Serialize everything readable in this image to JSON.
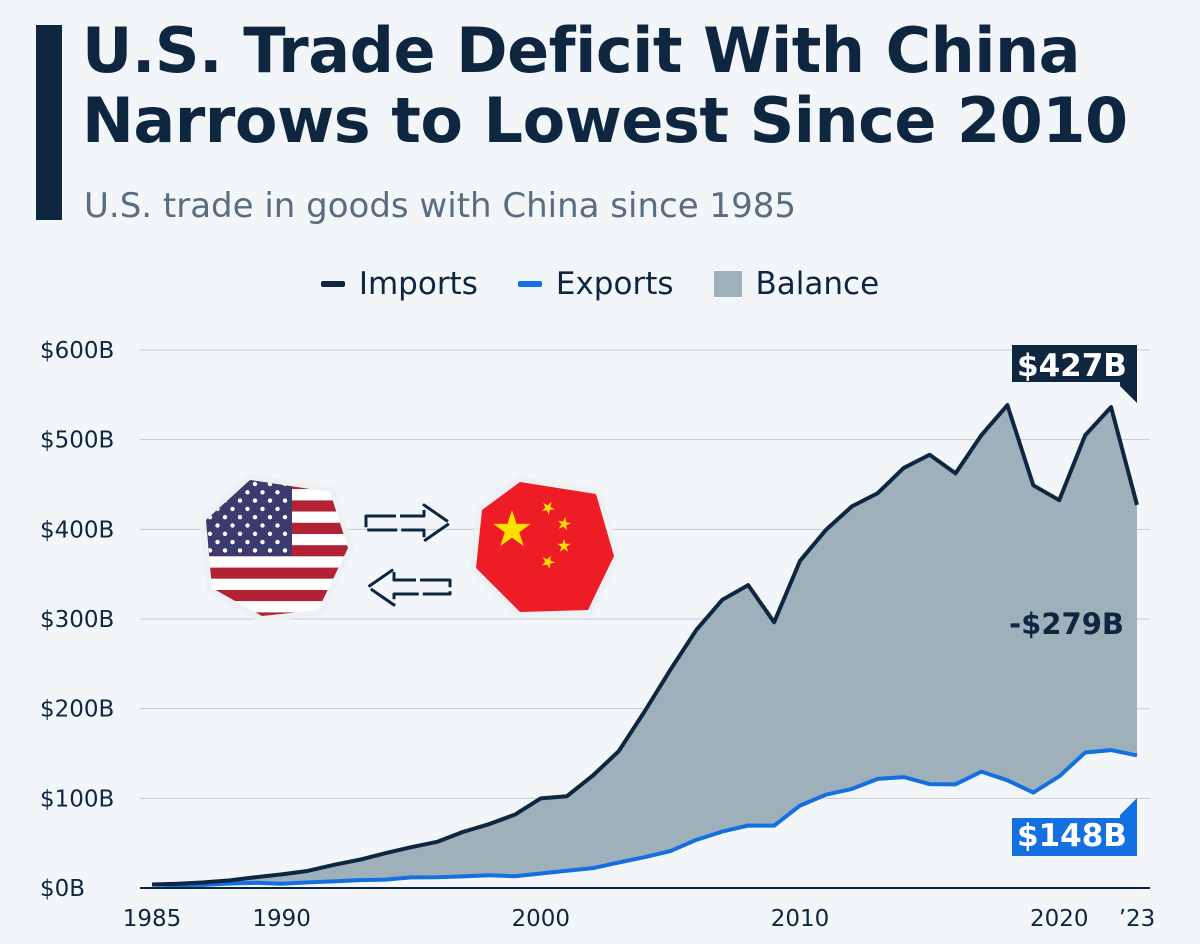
{
  "header": {
    "title_line1": "U.S. Trade Deficit With China",
    "title_line2": "Narrows to Lowest Since 2010",
    "subtitle": "U.S. trade in goods with China since 1985"
  },
  "colors": {
    "imports": "#0f2640",
    "exports": "#1470e0",
    "balance": "#9eb0ba",
    "background": "#f3f6f9"
  },
  "icons": {
    "left": "us-flag-icon",
    "middle": "exchange-arrows-icon",
    "right": "china-flag-icon"
  },
  "chart_data": {
    "type": "area",
    "title": "U.S. Trade Deficit With China Narrows to Lowest Since 2010",
    "subtitle": "U.S. trade in goods with China since 1985",
    "legend": [
      "Imports",
      "Exports",
      "Balance"
    ],
    "legend_position": "top",
    "grid": true,
    "ylim": [
      0,
      600
    ],
    "yticks": [
      "$0B",
      "$100B",
      "$200B",
      "$300B",
      "$400B",
      "$500B",
      "$600B"
    ],
    "xticks": [
      "1985",
      "1990",
      "2000",
      "2010",
      "2020",
      "’23"
    ],
    "x": [
      1985,
      1986,
      1987,
      1988,
      1989,
      1990,
      1991,
      1992,
      1993,
      1994,
      1995,
      1996,
      1997,
      1998,
      1999,
      2000,
      2001,
      2002,
      2003,
      2004,
      2005,
      2006,
      2007,
      2008,
      2009,
      2010,
      2011,
      2012,
      2013,
      2014,
      2015,
      2016,
      2017,
      2018,
      2019,
      2020,
      2021,
      2022,
      2023
    ],
    "series": [
      {
        "name": "Imports",
        "values": [
          3.9,
          4.8,
          6.3,
          8.5,
          12,
          15.2,
          19,
          25.7,
          31.5,
          38.8,
          45.5,
          51.5,
          62.6,
          71.2,
          81.8,
          100,
          102.3,
          125.2,
          152.4,
          196.7,
          243.5,
          287.8,
          321.4,
          337.8,
          296.4,
          364.9,
          399.4,
          425.6,
          440.4,
          468.5,
          483.2,
          462.4,
          505.2,
          538.5,
          449.1,
          432.5,
          504.9,
          536.3,
          427.2
        ]
      },
      {
        "name": "Exports",
        "values": [
          3.9,
          3.1,
          3.5,
          5.0,
          5.8,
          4.8,
          6.3,
          7.4,
          8.8,
          9.3,
          11.8,
          12.0,
          12.9,
          14.2,
          13.1,
          16.2,
          19.2,
          22.1,
          28.4,
          34.4,
          41.2,
          53.7,
          62.9,
          69.7,
          69.5,
          91.9,
          104.1,
          110.5,
          121.7,
          123.7,
          115.9,
          115.6,
          129.8,
          120.1,
          106.4,
          124.5,
          151.1,
          153.8,
          147.8
        ]
      }
    ],
    "annotations": {
      "imports_last": "$427B",
      "exports_last": "$148B",
      "balance_last": "-$279B"
    }
  }
}
